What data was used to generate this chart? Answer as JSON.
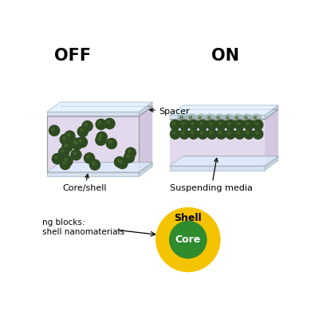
{
  "bg_color": "#ffffff",
  "title_off": "OFF",
  "title_on": "ON",
  "shell_color": "#f5c400",
  "core_color": "#2e8b2e",
  "glass_color": "#c8d8ea",
  "glass_edge_color": "#aabbc8",
  "glass_top_color": "#ddeeff",
  "glass_right_color": "#b0c4d8",
  "media_color": "#ddd0e8",
  "media_right_color": "#c8b8d8",
  "np_color": "#2d4a20",
  "np_highlight": "#4a6a30",
  "label_core_shell": "Core/shell",
  "label_spacer": "Spacer",
  "label_suspending": "Suspending media",
  "label_shell": "Shell",
  "label_core": "Core",
  "label_building_1": "ng blocks:",
  "label_building_2": "shell nanomaterials"
}
